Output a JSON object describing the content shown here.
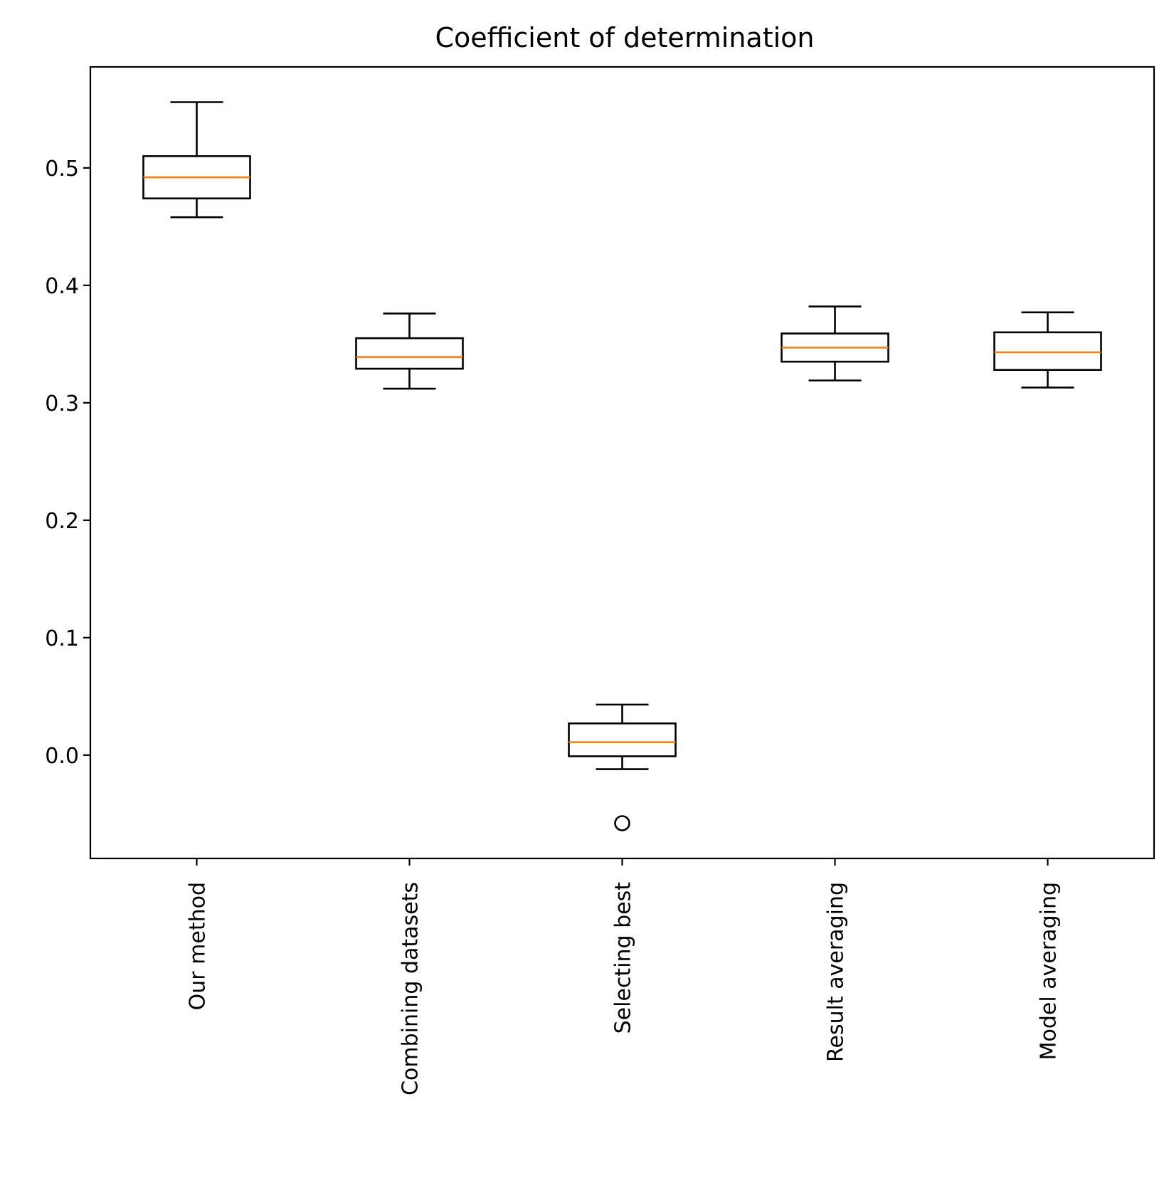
{
  "chart_data": {
    "type": "box",
    "title": "Coefficient of determination",
    "xlabel": "",
    "ylabel": "",
    "ylim": [
      -0.088,
      0.586
    ],
    "yticks": [
      0.0,
      0.1,
      0.2,
      0.3,
      0.4,
      0.5
    ],
    "ytick_labels": [
      "0.0",
      "0.1",
      "0.2",
      "0.3",
      "0.4",
      "0.5"
    ],
    "grid": false,
    "categories": [
      "Our method",
      "Combining datasets",
      "Selecting best",
      "Result averaging",
      "Model averaging"
    ],
    "boxes": [
      {
        "whisker_low": 0.458,
        "q1": 0.474,
        "median": 0.492,
        "q3": 0.51,
        "whisker_high": 0.556,
        "outliers": []
      },
      {
        "whisker_low": 0.312,
        "q1": 0.329,
        "median": 0.339,
        "q3": 0.355,
        "whisker_high": 0.376,
        "outliers": []
      },
      {
        "whisker_low": -0.012,
        "q1": -0.001,
        "median": 0.011,
        "q3": 0.027,
        "whisker_high": 0.043,
        "outliers": [
          -0.058
        ]
      },
      {
        "whisker_low": 0.319,
        "q1": 0.335,
        "median": 0.347,
        "q3": 0.359,
        "whisker_high": 0.382,
        "outliers": []
      },
      {
        "whisker_low": 0.313,
        "q1": 0.328,
        "median": 0.343,
        "q3": 0.36,
        "whisker_high": 0.377,
        "outliers": []
      }
    ],
    "colors": {
      "box": "#000000",
      "median": "#ff7f0e",
      "outlier": "#000000"
    }
  }
}
